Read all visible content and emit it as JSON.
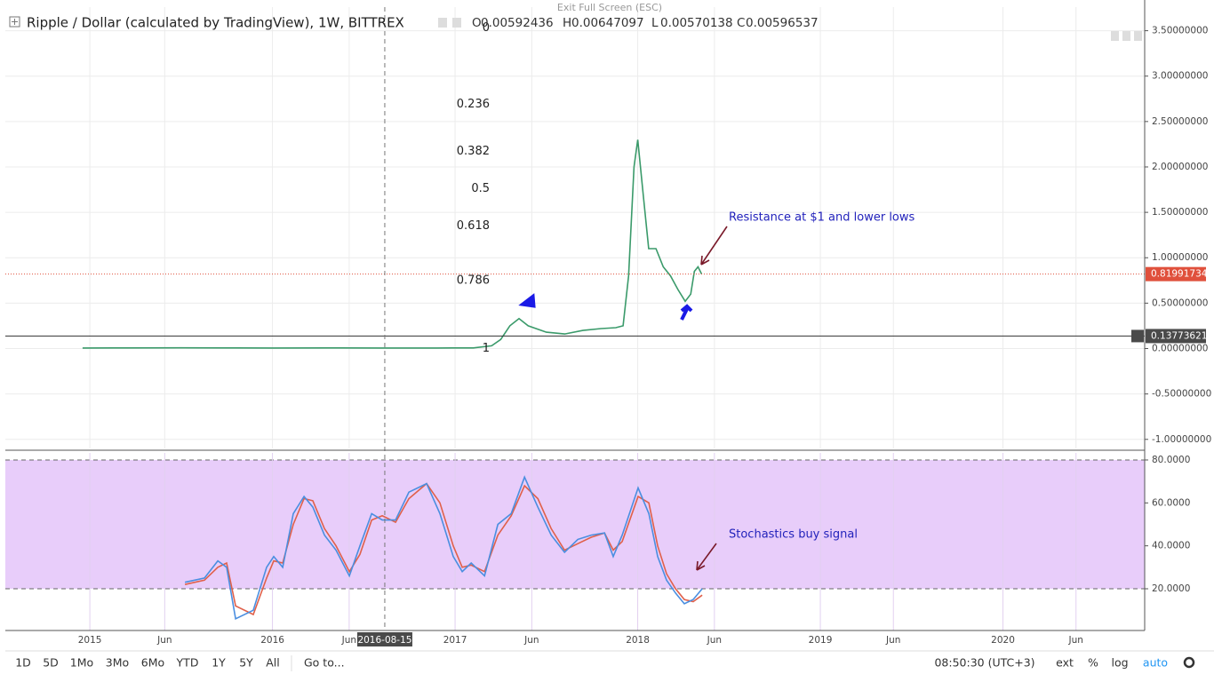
{
  "header": {
    "title": "Ripple / Dollar (calculated by TradingView), 1W, BITTREX",
    "ohlc": [
      {
        "key": "O",
        "value": 0.00592436
      },
      {
        "key": "H",
        "value": 0.00647097
      },
      {
        "key": "L",
        "value": 0.00570138
      },
      {
        "key": "C",
        "value": 0.00596537
      }
    ],
    "fullscreen_hint": "Exit Full Screen (ESC)"
  },
  "chart_data": [
    {
      "type": "line",
      "x": [
        2014.96,
        2015.2,
        2015.5,
        2015.8,
        2016.0,
        2016.3,
        2016.6,
        2016.9,
        2017.1,
        2017.2,
        2017.25,
        2017.3,
        2017.35,
        2017.4,
        2017.5,
        2017.6,
        2017.7,
        2017.8,
        2017.88,
        2017.92,
        2017.95,
        2017.98,
        2018.0,
        2018.03,
        2018.06,
        2018.1,
        2018.14,
        2018.18,
        2018.22,
        2018.26,
        2018.29,
        2018.31,
        2018.33,
        2018.35
      ],
      "series": [
        {
          "color": "#3a9a6a",
          "values": [
            0.006,
            0.007,
            0.008,
            0.007,
            0.006,
            0.007,
            0.006,
            0.006,
            0.007,
            0.03,
            0.1,
            0.25,
            0.33,
            0.25,
            0.18,
            0.16,
            0.2,
            0.22,
            0.23,
            0.25,
            0.8,
            2.0,
            2.3,
            1.7,
            1.1,
            1.1,
            0.9,
            0.8,
            0.65,
            0.52,
            0.6,
            0.85,
            0.9,
            0.82
          ]
        }
      ],
      "ylim": [
        -1.1,
        3.76
      ],
      "yticks": [
        {
          "value": 3.5,
          "label": "3.50000000"
        },
        {
          "value": 3.0,
          "label": "3.00000000"
        },
        {
          "value": 2.5,
          "label": "2.50000000"
        },
        {
          "value": 2.0,
          "label": "2.00000000"
        },
        {
          "value": 1.5,
          "label": "1.50000000"
        },
        {
          "value": 1.0,
          "label": "1.00000000"
        },
        {
          "value": 0.5,
          "label": "0.50000000"
        },
        {
          "value": 0,
          "label": "0.00000000"
        },
        {
          "value": -0.5,
          "label": "-0.50000000"
        },
        {
          "value": -1.0,
          "label": "-1.00000000"
        }
      ],
      "grid": true,
      "last_price": 0.81991734,
      "last_price_color": "#e0503c",
      "crosshair": {
        "y": 0.13773621,
        "x": 2016.615,
        "x_label": "2016-08-15"
      },
      "fib": [
        {
          "level": 0,
          "price": 3.53
        },
        {
          "level": 0.236,
          "price": 2.69
        },
        {
          "level": 0.382,
          "price": 2.17
        },
        {
          "level": 0.5,
          "price": 1.76
        },
        {
          "level": 0.618,
          "price": 1.35
        },
        {
          "level": 0.786,
          "price": 0.75
        },
        {
          "level": 1,
          "price": 0.0
        }
      ],
      "annotation": "Resistance at $1 and lower lows"
    },
    {
      "type": "line",
      "x": [
        2015.521,
        2015.628,
        2015.701,
        2015.749,
        2015.798,
        2015.895,
        2015.968,
        2016.007,
        2016.056,
        2016.114,
        2016.173,
        2016.221,
        2016.285,
        2016.348,
        2016.421,
        2016.479,
        2016.543,
        2016.601,
        2016.674,
        2016.747,
        2016.844,
        2016.917,
        2016.99,
        2017.039,
        2017.088,
        2017.161,
        2017.234,
        2017.307,
        2017.38,
        2017.453,
        2017.526,
        2017.599,
        2017.672,
        2017.745,
        2017.818,
        2017.866,
        2017.915,
        2018.002,
        2018.061,
        2018.109,
        2018.158,
        2018.207,
        2018.255,
        2018.304,
        2018.353
      ],
      "series": [
        {
          "color": "#e0604a",
          "values": [
            22,
            24,
            30,
            32,
            12,
            8,
            25,
            33,
            32,
            50,
            62,
            61,
            48,
            40,
            28,
            36,
            52,
            54,
            51,
            62,
            69,
            60,
            40,
            30,
            31,
            28,
            45,
            54,
            68,
            62,
            48,
            38,
            41,
            44,
            46,
            38,
            42,
            63,
            60,
            40,
            27,
            20,
            15,
            14,
            17
          ]
        },
        {
          "color": "#4a8ee0",
          "values": [
            23,
            25,
            33,
            30,
            6,
            10,
            30,
            35,
            30,
            55,
            63,
            58,
            45,
            38,
            26,
            40,
            55,
            52,
            52,
            65,
            69,
            55,
            35,
            28,
            32,
            26,
            50,
            55,
            72,
            58,
            45,
            37,
            43,
            45,
            46,
            35,
            45,
            67,
            55,
            35,
            24,
            18,
            13,
            15,
            20
          ]
        }
      ],
      "ylim": [
        0.55,
        83.3
      ],
      "yticks": [
        {
          "value": 80,
          "label": "80.0000"
        },
        {
          "value": 60,
          "label": "60.0000"
        },
        {
          "value": 40,
          "label": "40.0000"
        },
        {
          "value": 20,
          "label": "20.0000"
        }
      ],
      "band": [
        20,
        80
      ],
      "band_color": "#e8cdfa",
      "xlim": [
        2014.547,
        2020.776
      ],
      "xticks": [
        2015,
        {
          "value": 2015.41,
          "label": "Jun"
        },
        2016,
        {
          "value": 2016.42,
          "label": "Jun"
        },
        2017,
        {
          "value": 2017.42,
          "label": "Jun"
        },
        2018,
        {
          "value": 2018.42,
          "label": "Jun"
        },
        2019,
        {
          "value": 2019.4,
          "label": "Jun"
        },
        2020,
        {
          "value": 2020.4,
          "label": "Jun"
        }
      ],
      "annotation": "Stochastics buy signal"
    }
  ],
  "toolbar": {
    "ranges": [
      "1D",
      "5D",
      "1Mo",
      "3Mo",
      "6Mo",
      "YTD",
      "1Y",
      "5Y",
      "All"
    ],
    "goto": "Go to...",
    "clock": "08:50:30 (UTC+3)",
    "options": [
      "ext",
      "%",
      "log",
      "auto"
    ]
  }
}
